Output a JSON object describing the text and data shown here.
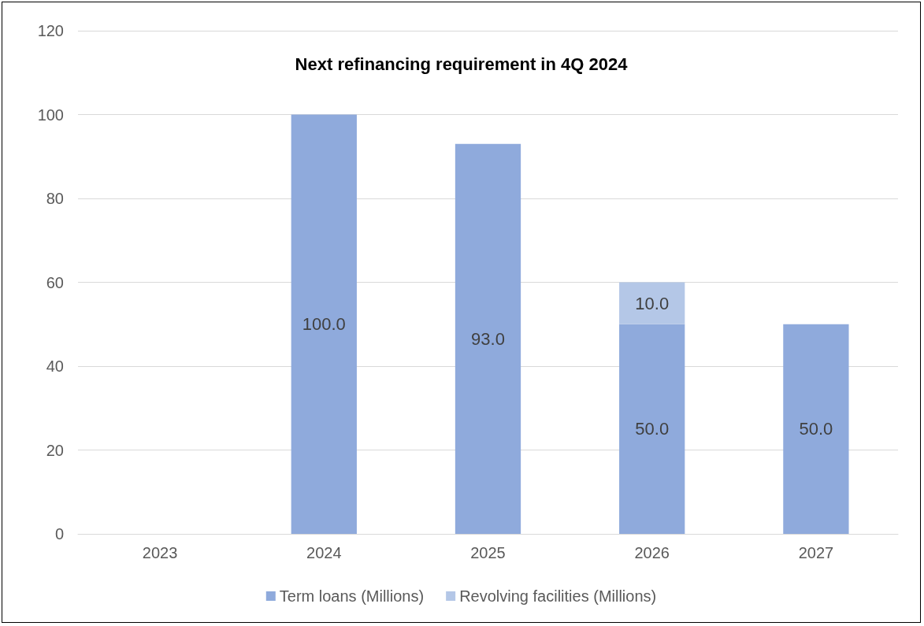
{
  "chart_data": {
    "type": "bar",
    "title": "Next refinancing requirement in 4Q 2024",
    "categories": [
      "2023",
      "2024",
      "2025",
      "2026",
      "2027"
    ],
    "series": [
      {
        "name": "Term loans (Millions)",
        "color": "#8faadc",
        "values": [
          null,
          100,
          93,
          50,
          50
        ],
        "value_labels": [
          null,
          "100.0",
          "93.0",
          "50.0",
          "50.0"
        ]
      },
      {
        "name": "Revolving facilities (Millions)",
        "color": "#b4c7e7",
        "values": [
          null,
          null,
          null,
          10,
          null
        ],
        "value_labels": [
          null,
          null,
          null,
          "10.0",
          null
        ]
      }
    ],
    "stacked": true,
    "ylim": [
      0,
      120
    ],
    "yticks": [
      0,
      20,
      40,
      60,
      80,
      100,
      120
    ],
    "grid": "y",
    "legend": "bottom"
  }
}
